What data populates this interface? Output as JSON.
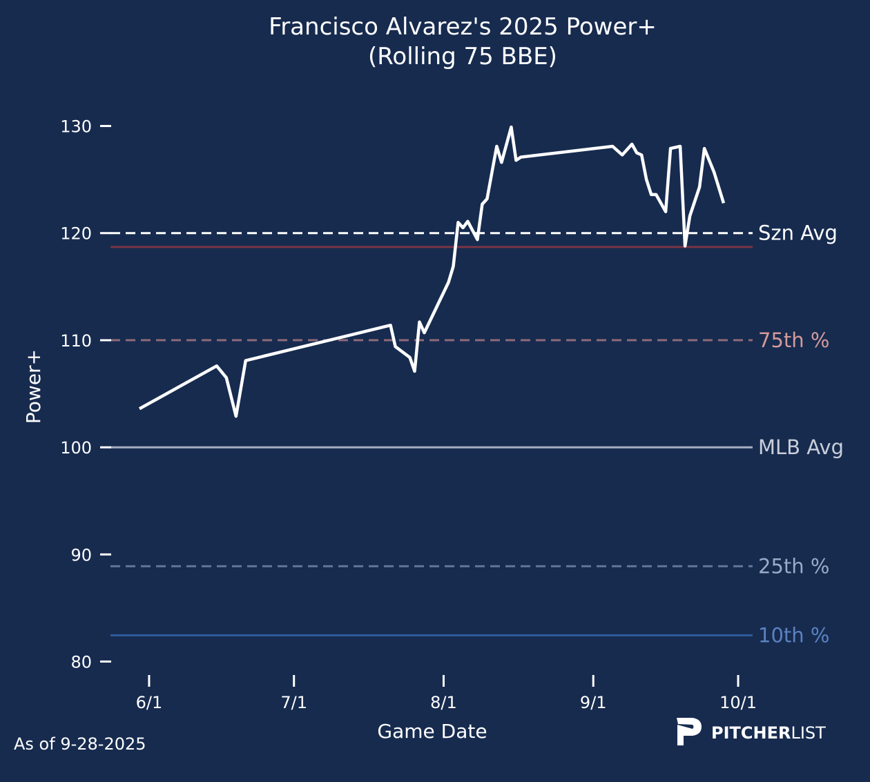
{
  "chart_data": {
    "type": "line",
    "title": "Francisco Alvarez's 2025 Power+",
    "subtitle": "(Rolling 75 BBE)",
    "xlabel": "Game Date",
    "ylabel": "Power+",
    "xlim": [
      "2025-05-24",
      "2025-10-04"
    ],
    "ylim": [
      79,
      133
    ],
    "x_ticks": [
      {
        "date": "2025-06-01",
        "label": "6/1"
      },
      {
        "date": "2025-07-01",
        "label": "7/1"
      },
      {
        "date": "2025-08-01",
        "label": "8/1"
      },
      {
        "date": "2025-09-01",
        "label": "9/1"
      },
      {
        "date": "2025-10-01",
        "label": "10/1"
      }
    ],
    "y_ticks": [
      {
        "value": 80,
        "label": "80"
      },
      {
        "value": 90,
        "label": "90"
      },
      {
        "value": 100,
        "label": "100"
      },
      {
        "value": 110,
        "label": "110"
      },
      {
        "value": 120,
        "label": "120"
      },
      {
        "value": 130,
        "label": "130"
      }
    ],
    "grid": false,
    "series": [
      {
        "color": "#ffffff",
        "points": [
          [
            "2025-05-30",
            103.6
          ],
          [
            "2025-06-15",
            107.6
          ],
          [
            "2025-06-17",
            106.5
          ],
          [
            "2025-06-19",
            102.9
          ],
          [
            "2025-06-21",
            108.1
          ],
          [
            "2025-07-21",
            111.4
          ],
          [
            "2025-07-22",
            109.4
          ],
          [
            "2025-07-25",
            108.4
          ],
          [
            "2025-07-26",
            107.1
          ],
          [
            "2025-07-27",
            111.7
          ],
          [
            "2025-07-28",
            110.7
          ],
          [
            "2025-08-02",
            115.4
          ],
          [
            "2025-08-03",
            116.9
          ],
          [
            "2025-08-04",
            121.0
          ],
          [
            "2025-08-05",
            120.5
          ],
          [
            "2025-08-06",
            121.1
          ],
          [
            "2025-08-08",
            119.4
          ],
          [
            "2025-08-09",
            122.7
          ],
          [
            "2025-08-10",
            123.2
          ],
          [
            "2025-08-12",
            128.1
          ],
          [
            "2025-08-13",
            126.6
          ],
          [
            "2025-08-15",
            129.9
          ],
          [
            "2025-08-16",
            126.8
          ],
          [
            "2025-08-17",
            127.1
          ],
          [
            "2025-09-05",
            128.1
          ],
          [
            "2025-09-07",
            127.3
          ],
          [
            "2025-09-09",
            128.3
          ],
          [
            "2025-09-10",
            127.5
          ],
          [
            "2025-09-11",
            127.3
          ],
          [
            "2025-09-12",
            125.0
          ],
          [
            "2025-09-13",
            123.6
          ],
          [
            "2025-09-14",
            123.6
          ],
          [
            "2025-09-16",
            122.0
          ],
          [
            "2025-09-17",
            127.9
          ],
          [
            "2025-09-19",
            128.1
          ],
          [
            "2025-09-20",
            118.8
          ],
          [
            "2025-09-21",
            121.6
          ],
          [
            "2025-09-23",
            124.3
          ],
          [
            "2025-09-24",
            127.9
          ],
          [
            "2025-09-26",
            125.7
          ],
          [
            "2025-09-28",
            122.8
          ]
        ]
      }
    ],
    "reference_lines": [
      {
        "value": 120.0,
        "label": "Szn Avg",
        "style": "dashed",
        "color": "#ffffff",
        "label_color": "#ffffff"
      },
      {
        "value": 118.7,
        "label": "",
        "style": "solid",
        "color": "#7a3545",
        "label_color": ""
      },
      {
        "value": 110.0,
        "label": "75th %",
        "style": "dashed",
        "color": "#8e6a78",
        "label_color": "#d49a9a"
      },
      {
        "value": 100.0,
        "label": "MLB Avg",
        "style": "solid",
        "color": "#a9b0c0",
        "label_color": "#c9ced9"
      },
      {
        "value": 88.9,
        "label": "25th %",
        "style": "dashed",
        "color": "#5f7599",
        "label_color": "#9aaac8"
      },
      {
        "value": 82.45,
        "label": "10th %",
        "style": "solid",
        "color": "#2d5a9a",
        "label_color": "#5b82c0"
      }
    ]
  },
  "footer": {
    "as_of": "As of 9-28-2025",
    "brand_bold": "PITCHER",
    "brand_light": "LIST"
  },
  "colors": {
    "background": "#172b4f",
    "text": "#ffffff"
  }
}
